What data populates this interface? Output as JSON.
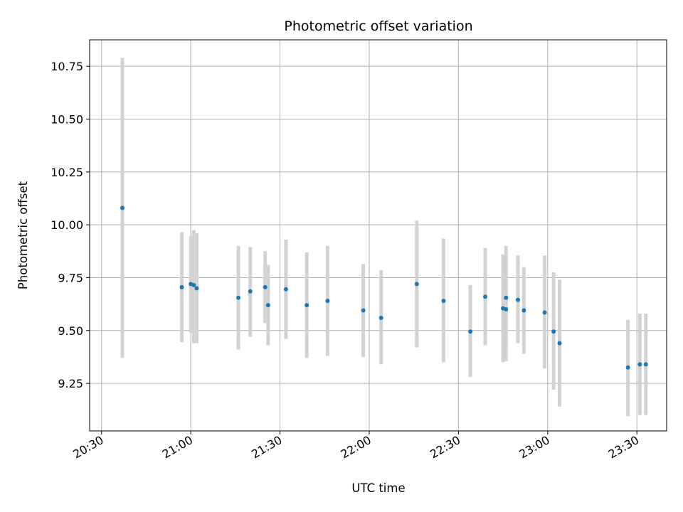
{
  "chart_data": {
    "type": "scatter",
    "title": "Photometric offset variation",
    "xlabel": "UTC time",
    "ylabel": "Photometric offset",
    "grid": true,
    "x_unit": "HH:MM (UTC)",
    "xlim": [
      "20:26",
      "23:40"
    ],
    "ylim": [
      9.025,
      10.875
    ],
    "x_ticks": [
      "20:30",
      "21:00",
      "21:30",
      "22:00",
      "22:30",
      "23:00",
      "23:30"
    ],
    "y_ticks": [
      "9.25",
      "9.50",
      "9.75",
      "10.00",
      "10.25",
      "10.50",
      "10.75"
    ],
    "marker_color": "#1f77b4",
    "errorbar_color": "#d3d3d3",
    "points": [
      {
        "x": "20:37",
        "y": 10.08,
        "ylow": 9.37,
        "yhigh": 10.79
      },
      {
        "x": "20:57",
        "y": 9.705,
        "ylow": 9.445,
        "yhigh": 9.965
      },
      {
        "x": "21:00",
        "y": 9.72,
        "ylow": 9.49,
        "yhigh": 9.945
      },
      {
        "x": "21:01",
        "y": 9.715,
        "ylow": 9.44,
        "yhigh": 9.975
      },
      {
        "x": "21:02",
        "y": 9.7,
        "ylow": 9.44,
        "yhigh": 9.96
      },
      {
        "x": "21:16",
        "y": 9.655,
        "ylow": 9.41,
        "yhigh": 9.9
      },
      {
        "x": "21:20",
        "y": 9.685,
        "ylow": 9.47,
        "yhigh": 9.895
      },
      {
        "x": "21:25",
        "y": 9.705,
        "ylow": 9.535,
        "yhigh": 9.875
      },
      {
        "x": "21:26",
        "y": 9.62,
        "ylow": 9.43,
        "yhigh": 9.81
      },
      {
        "x": "21:32",
        "y": 9.695,
        "ylow": 9.46,
        "yhigh": 9.93
      },
      {
        "x": "21:39",
        "y": 9.62,
        "ylow": 9.37,
        "yhigh": 9.87
      },
      {
        "x": "21:46",
        "y": 9.64,
        "ylow": 9.38,
        "yhigh": 9.9
      },
      {
        "x": "21:58",
        "y": 9.595,
        "ylow": 9.375,
        "yhigh": 9.815
      },
      {
        "x": "22:04",
        "y": 9.56,
        "ylow": 9.34,
        "yhigh": 9.785
      },
      {
        "x": "22:16",
        "y": 9.72,
        "ylow": 9.42,
        "yhigh": 10.02
      },
      {
        "x": "22:25",
        "y": 9.64,
        "ylow": 9.35,
        "yhigh": 9.935
      },
      {
        "x": "22:34",
        "y": 9.495,
        "ylow": 9.28,
        "yhigh": 9.715
      },
      {
        "x": "22:39",
        "y": 9.66,
        "ylow": 9.43,
        "yhigh": 9.89
      },
      {
        "x": "22:45",
        "y": 9.605,
        "ylow": 9.35,
        "yhigh": 9.86
      },
      {
        "x": "22:46",
        "y": 9.6,
        "ylow": 9.355,
        "yhigh": 9.85
      },
      {
        "x": "22:46",
        "y": 9.655,
        "ylow": 9.41,
        "yhigh": 9.9
      },
      {
        "x": "22:50",
        "y": 9.645,
        "ylow": 9.44,
        "yhigh": 9.855
      },
      {
        "x": "22:52",
        "y": 9.595,
        "ylow": 9.39,
        "yhigh": 9.8
      },
      {
        "x": "22:59",
        "y": 9.585,
        "ylow": 9.32,
        "yhigh": 9.855
      },
      {
        "x": "23:02",
        "y": 9.495,
        "ylow": 9.22,
        "yhigh": 9.775
      },
      {
        "x": "23:04",
        "y": 9.44,
        "ylow": 9.14,
        "yhigh": 9.74
      },
      {
        "x": "23:27",
        "y": 9.325,
        "ylow": 9.095,
        "yhigh": 9.55
      },
      {
        "x": "23:31",
        "y": 9.34,
        "ylow": 9.1,
        "yhigh": 9.58
      },
      {
        "x": "23:33",
        "y": 9.34,
        "ylow": 9.1,
        "yhigh": 9.58
      }
    ]
  }
}
